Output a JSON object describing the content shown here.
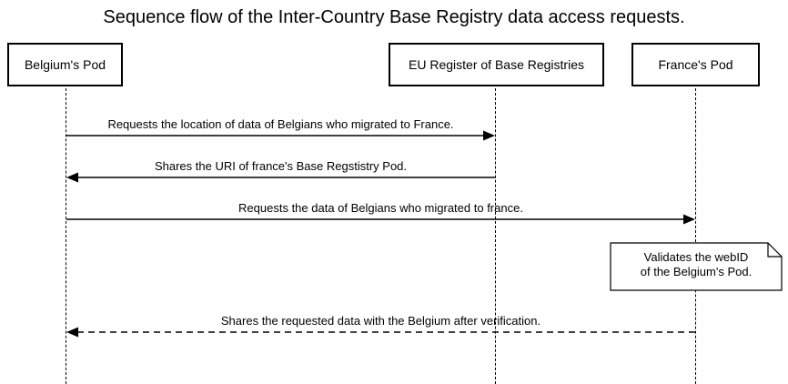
{
  "title": "Sequence flow of the Inter-Country Base Registry data access requests.",
  "actors": [
    {
      "name": "Belgium's Pod"
    },
    {
      "name": "EU Register of Base Registries"
    },
    {
      "name": "France's Pod"
    }
  ],
  "messages": [
    {
      "label": "Requests the location of data of Belgians who migrated to France.",
      "from": "Belgium's Pod",
      "to": "EU Register of Base Registries",
      "style": "solid"
    },
    {
      "label": "Shares the URI of france's Base Regstistry Pod.",
      "from": "EU Register of Base Registries",
      "to": "Belgium's Pod",
      "style": "solid"
    },
    {
      "label": "Requests the data of Belgians who migrated to france.",
      "from": "Belgium's Pod",
      "to": "France's Pod",
      "style": "solid"
    },
    {
      "label": "Shares the requested data with the Belgium after verification.",
      "from": "France's Pod",
      "to": "Belgium's Pod",
      "style": "dashed"
    }
  ],
  "note": {
    "text": "Validates the webID\n of the Belgium's Pod.",
    "attached_to": "France's Pod"
  }
}
